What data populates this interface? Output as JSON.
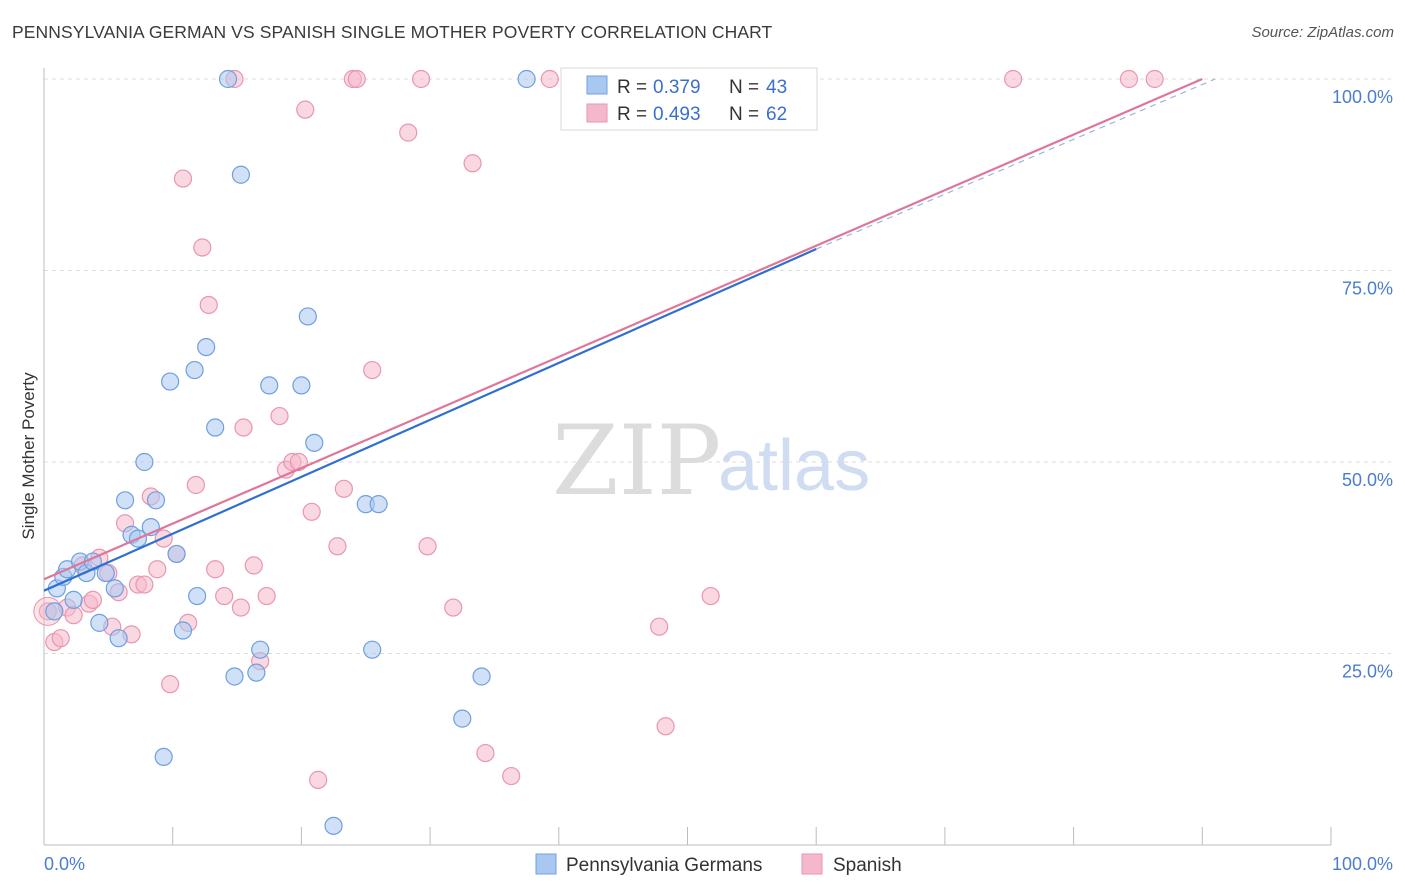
{
  "header": {
    "title": "PENNSYLVANIA GERMAN VS SPANISH SINGLE MOTHER POVERTY CORRELATION CHART",
    "source": "Source: ZipAtlas.com"
  },
  "legend": {
    "rows": [
      {
        "r_label": "R =",
        "r_value": "0.379",
        "n_label": "N =",
        "n_value": "43",
        "color": "#a9c8f0"
      },
      {
        "r_label": "R =",
        "r_value": "0.493",
        "n_label": "N =",
        "n_value": "62",
        "color": "#f5b8cb"
      }
    ]
  },
  "bottom_legend": {
    "items": [
      {
        "label": "Pennsylvania Germans",
        "color": "#a9c8f0"
      },
      {
        "label": "Spanish",
        "color": "#f5b8cb"
      }
    ]
  },
  "watermark": {
    "zip": "ZIP",
    "atlas": "atlas"
  },
  "chart_data": {
    "type": "scatter",
    "ylabel": "Single Mother Poverty",
    "xlim": [
      0,
      100
    ],
    "ylim": [
      0,
      100
    ],
    "x_tick_labels": [
      {
        "value": 0,
        "label": "0.0%"
      },
      {
        "value": 100,
        "label": "100.0%"
      }
    ],
    "y_tick_labels": [
      {
        "value": 25,
        "label": "25.0%"
      },
      {
        "value": 50,
        "label": "50.0%"
      },
      {
        "value": 75,
        "label": "75.0%"
      },
      {
        "value": 100,
        "label": "100.0%"
      }
    ],
    "grid": true,
    "colors": {
      "blue_fill": "#a9c8f0",
      "blue_stroke": "#6f9fe0",
      "blue_line": "#2f6fd0",
      "pink_fill": "#f5b8cb",
      "pink_stroke": "#e996b0",
      "pink_line": "#e0759a"
    },
    "series": [
      {
        "name": "Pennsylvania Germans",
        "trend": {
          "x": [
            0,
            60
          ],
          "y": [
            33.2,
            77.8
          ]
        },
        "trend_dashed": {
          "x": [
            60,
            91
          ],
          "y": [
            77.8,
            100
          ]
        },
        "points": [
          [
            0.8,
            30.5
          ],
          [
            1.0,
            33.5
          ],
          [
            1.5,
            35.0
          ],
          [
            1.8,
            36.0
          ],
          [
            2.3,
            32.0
          ],
          [
            2.8,
            37.0
          ],
          [
            3.3,
            35.5
          ],
          [
            3.8,
            37.0
          ],
          [
            4.3,
            29.0
          ],
          [
            4.8,
            35.5
          ],
          [
            5.5,
            33.5
          ],
          [
            5.8,
            27.0
          ],
          [
            6.3,
            45.0
          ],
          [
            6.8,
            40.5
          ],
          [
            7.3,
            40.0
          ],
          [
            7.8,
            50.0
          ],
          [
            8.3,
            41.5
          ],
          [
            8.7,
            45.0
          ],
          [
            9.3,
            11.5
          ],
          [
            9.8,
            60.5
          ],
          [
            10.3,
            38.0
          ],
          [
            10.8,
            28.0
          ],
          [
            11.7,
            62.0
          ],
          [
            11.9,
            32.5
          ],
          [
            12.6,
            65.0
          ],
          [
            13.3,
            54.5
          ],
          [
            14.3,
            100.0
          ],
          [
            14.8,
            22.0
          ],
          [
            15.3,
            87.5
          ],
          [
            16.5,
            22.5
          ],
          [
            16.8,
            25.5
          ],
          [
            17.5,
            60.0
          ],
          [
            20.0,
            60.0
          ],
          [
            20.5,
            69.0
          ],
          [
            21.0,
            52.5
          ],
          [
            22.5,
            2.5
          ],
          [
            25.0,
            44.5
          ],
          [
            25.5,
            25.5
          ],
          [
            26.0,
            44.5
          ],
          [
            32.5,
            16.5
          ],
          [
            34.0,
            22.0
          ],
          [
            37.5,
            100.0
          ],
          [
            58.5,
            100.0
          ]
        ]
      },
      {
        "name": "Spanish",
        "trend": {
          "x": [
            0,
            90
          ],
          "y": [
            34.7,
            100
          ]
        },
        "points": [
          [
            0.3,
            30.5
          ],
          [
            0.8,
            26.5
          ],
          [
            1.3,
            27.0
          ],
          [
            1.8,
            31.0
          ],
          [
            2.3,
            30.0
          ],
          [
            3.0,
            36.5
          ],
          [
            3.5,
            31.5
          ],
          [
            3.8,
            32.0
          ],
          [
            4.3,
            37.5
          ],
          [
            5.0,
            35.5
          ],
          [
            5.3,
            28.5
          ],
          [
            5.8,
            33.0
          ],
          [
            6.3,
            42.0
          ],
          [
            6.8,
            27.5
          ],
          [
            7.3,
            34.0
          ],
          [
            7.8,
            34.0
          ],
          [
            8.3,
            45.5
          ],
          [
            8.8,
            36.0
          ],
          [
            9.3,
            40.0
          ],
          [
            9.8,
            21.0
          ],
          [
            10.3,
            38.0
          ],
          [
            10.8,
            87.0
          ],
          [
            11.2,
            29.0
          ],
          [
            11.8,
            47.0
          ],
          [
            12.3,
            78.0
          ],
          [
            12.8,
            70.5
          ],
          [
            13.3,
            36.0
          ],
          [
            14.0,
            32.5
          ],
          [
            14.8,
            100.0
          ],
          [
            15.3,
            31.0
          ],
          [
            15.5,
            54.5
          ],
          [
            16.3,
            36.5
          ],
          [
            16.8,
            24.0
          ],
          [
            17.3,
            32.5
          ],
          [
            18.3,
            56.0
          ],
          [
            18.8,
            49.0
          ],
          [
            19.3,
            50.0
          ],
          [
            19.8,
            50.0
          ],
          [
            20.3,
            96.0
          ],
          [
            20.8,
            43.5
          ],
          [
            21.3,
            8.5
          ],
          [
            22.8,
            39.0
          ],
          [
            23.3,
            46.5
          ],
          [
            24.0,
            100.0
          ],
          [
            24.3,
            100.0
          ],
          [
            25.5,
            62.0
          ],
          [
            28.3,
            93.0
          ],
          [
            29.3,
            100.0
          ],
          [
            29.8,
            39.0
          ],
          [
            31.8,
            31.0
          ],
          [
            33.3,
            89.0
          ],
          [
            34.3,
            12.0
          ],
          [
            36.3,
            9.0
          ],
          [
            41.3,
            100.0
          ],
          [
            47.8,
            28.5
          ],
          [
            48.3,
            15.5
          ],
          [
            51.8,
            32.5
          ],
          [
            56.3,
            100.0
          ],
          [
            75.3,
            100.0
          ],
          [
            84.3,
            100.0
          ],
          [
            86.3,
            100.0
          ],
          [
            39.3,
            100.0
          ]
        ]
      }
    ]
  }
}
